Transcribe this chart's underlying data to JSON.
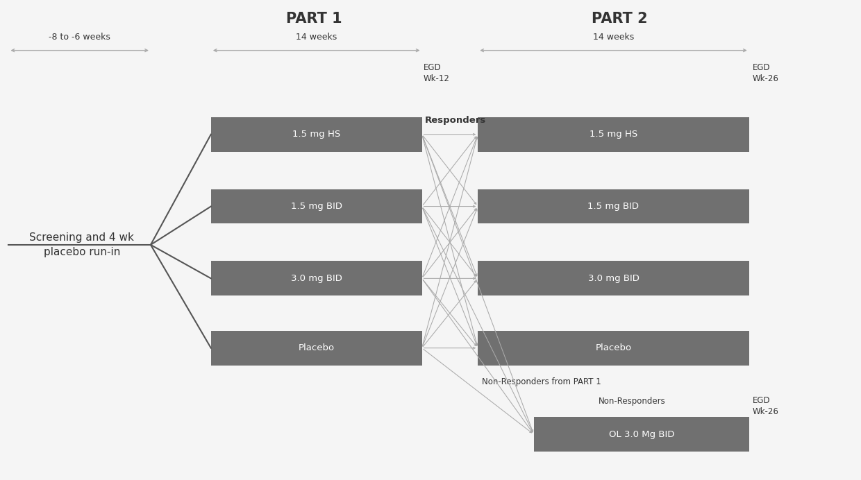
{
  "background_color": "#f5f5f5",
  "part1_title": "PART 1",
  "part2_title": "PART 2",
  "part1_weeks": "14 weeks",
  "part2_weeks": "14 weeks",
  "screening_label": "Screening and 4 wk\nplacebo run-in",
  "screening_weeks": "-8 to -6 weeks",
  "egd_wk12": "EGD\nWk-12",
  "egd_wk26_top": "EGD\nWk-26",
  "egd_wk26_bottom": "EGD\nWk-26",
  "responders_label": "Responders",
  "non_responders_label": "Non-Responders from PART 1",
  "non_responders_box_label": "Non-Responders",
  "part1_boxes": [
    {
      "label": "1.5 mg HS"
    },
    {
      "label": "1.5 mg BID"
    },
    {
      "label": "3.0 mg BID"
    },
    {
      "label": "Placebo"
    }
  ],
  "part2_boxes_top": [
    {
      "label": "1.5 mg HS"
    },
    {
      "label": "1.5 mg BID"
    },
    {
      "label": "3.0 mg BID"
    },
    {
      "label": "Placebo"
    }
  ],
  "part2_box_bottom_label": "OL 3.0 Mg BID",
  "box_color": "#707070",
  "box_text_color": "#ffffff",
  "line_color": "#aaaaaa",
  "dark_line_color": "#555555",
  "font_color": "#333333"
}
